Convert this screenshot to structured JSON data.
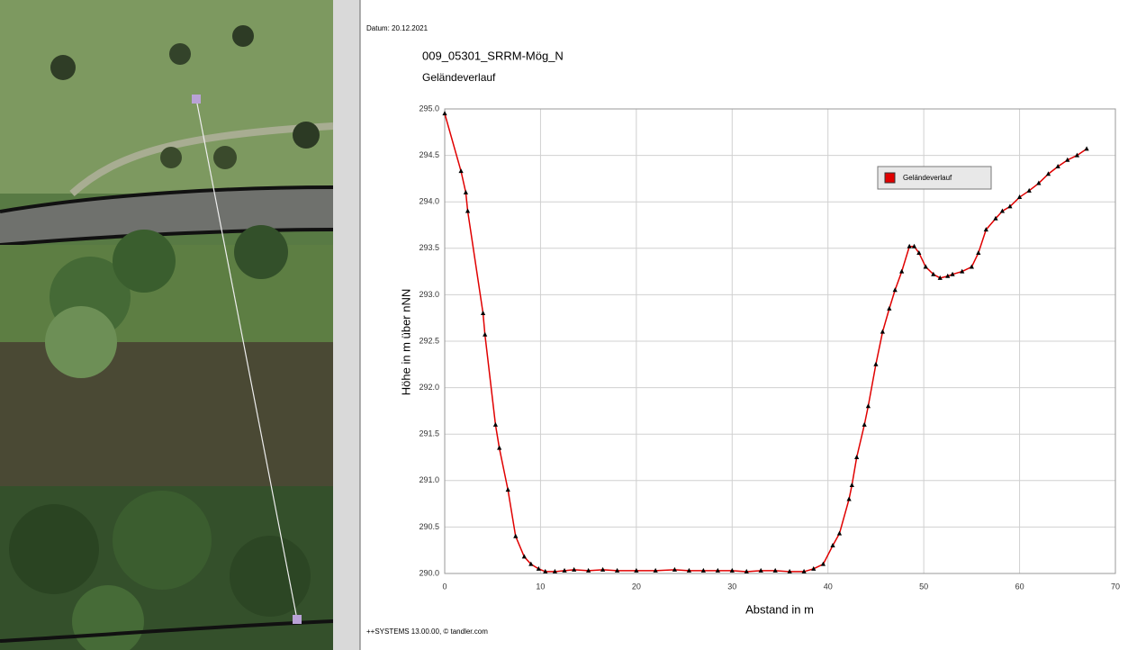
{
  "header": {
    "date": "Datum: 20.12.2021"
  },
  "footer": {
    "text": "++SYSTEMS 13.00.00, © tandler.com"
  },
  "chart_data": {
    "type": "line",
    "title": "009_05301_SRRM-Mög_N",
    "subtitle": "Geländeverlauf",
    "x_label": "Abstand in m",
    "y_label": "Höhe in m über nNN",
    "xlim": [
      0,
      70
    ],
    "xticks": [
      0,
      10,
      20,
      30,
      40,
      50,
      60,
      70
    ],
    "ylim": [
      290,
      295
    ],
    "yticks": [
      {
        "value": 290,
        "label": "290.0"
      },
      290.5,
      {
        "value": 291,
        "label": "291.0"
      },
      291.5,
      {
        "value": 292,
        "label": "292.0"
      },
      292.5,
      {
        "value": 293,
        "label": "293.0"
      },
      293.5,
      {
        "value": 294,
        "label": "294.0"
      },
      294.5,
      {
        "value": 295,
        "label": "295.0"
      }
    ],
    "grid": true,
    "legend": "upper right",
    "marker_color": "#000000",
    "x": [
      0,
      1.7,
      2.2,
      2.4,
      4,
      4.2,
      5.3,
      5.7,
      6.6,
      7.4,
      8.3,
      9,
      9.8,
      10.5,
      11.5,
      12.5,
      13.5,
      15,
      16.5,
      18,
      20,
      22,
      24,
      25.5,
      27,
      28.5,
      30,
      31.5,
      33,
      34.5,
      36,
      37.5,
      38.5,
      39.5,
      40.5,
      41.2,
      42.2,
      42.5,
      43,
      43.8,
      44.2,
      45,
      45.7,
      46.4,
      47,
      47.7,
      48.5,
      49,
      49.5,
      50.2,
      51,
      51.7,
      52.5,
      53,
      54,
      55,
      55.7,
      56.5,
      57.5,
      58.2,
      59,
      60,
      61,
      62,
      63,
      64,
      65,
      66,
      67
    ],
    "series": [
      {
        "name": "Geländeverlauf",
        "color": "#e00000",
        "values": [
          294.95,
          294.33,
          294.1,
          293.9,
          292.8,
          292.57,
          291.6,
          291.35,
          290.9,
          290.4,
          290.18,
          290.1,
          290.05,
          290.02,
          290.02,
          290.03,
          290.04,
          290.03,
          290.04,
          290.03,
          290.03,
          290.03,
          290.04,
          290.03,
          290.03,
          290.03,
          290.03,
          290.02,
          290.03,
          290.03,
          290.02,
          290.02,
          290.05,
          290.1,
          290.3,
          290.43,
          290.8,
          290.95,
          291.25,
          291.6,
          291.8,
          292.25,
          292.6,
          292.85,
          293.05,
          293.25,
          293.52,
          293.52,
          293.45,
          293.3,
          293.22,
          293.18,
          293.2,
          293.22,
          293.25,
          293.3,
          293.45,
          293.7,
          293.82,
          293.9,
          293.95,
          294.05,
          294.12,
          294.2,
          294.3,
          294.38,
          294.45,
          294.5,
          294.57
        ]
      }
    ]
  }
}
